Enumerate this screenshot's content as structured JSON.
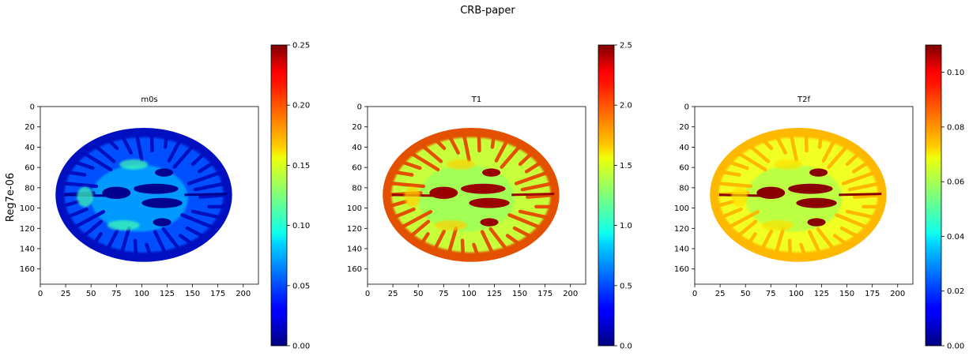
{
  "figure": {
    "suptitle": "CRB-paper",
    "row_label": "Reg7e-06"
  },
  "chart_data": [
    {
      "type": "heatmap",
      "title": "m0s",
      "colormap": "jet",
      "xlim": [
        0,
        215
      ],
      "ylim": [
        175,
        0
      ],
      "x_ticks": [
        0,
        25,
        50,
        75,
        100,
        125,
        150,
        175,
        200
      ],
      "y_ticks": [
        0,
        20,
        40,
        60,
        80,
        100,
        120,
        140,
        160
      ],
      "colorbar": {
        "range": [
          0,
          0.25
        ],
        "ticks": [
          "0.00",
          "0.05",
          "0.10",
          "0.15",
          "0.20",
          "0.25"
        ]
      },
      "brain": {
        "cx": 102,
        "cy": 87,
        "rx": 87,
        "ry": 66
      },
      "colors": {
        "background": "#0050ff",
        "core": "#00a8ff",
        "gm": "#0010c0",
        "csf": "#00008e",
        "highlight": "#40ffb0"
      }
    },
    {
      "type": "heatmap",
      "title": "T1",
      "colormap": "jet",
      "xlim": [
        0,
        215
      ],
      "ylim": [
        175,
        0
      ],
      "x_ticks": [
        0,
        25,
        50,
        75,
        100,
        125,
        150,
        175,
        200
      ],
      "y_ticks": [
        0,
        20,
        40,
        60,
        80,
        100,
        120,
        140,
        160
      ],
      "colorbar": {
        "range": [
          0,
          2.5
        ],
        "ticks": [
          "0.0",
          "0.5",
          "1.0",
          "1.5",
          "2.0",
          "2.5"
        ]
      },
      "brain": {
        "cx": 102,
        "cy": 87,
        "rx": 87,
        "ry": 66
      },
      "colors": {
        "background": "#c8ff3a",
        "core": "#9cff5a",
        "gm": "#e25000",
        "csf": "#9a0000",
        "highlight": "#ffd000"
      }
    },
    {
      "type": "heatmap",
      "title": "T2f",
      "colormap": "jet",
      "xlim": [
        0,
        215
      ],
      "ylim": [
        175,
        0
      ],
      "x_ticks": [
        0,
        25,
        50,
        75,
        100,
        125,
        150,
        175,
        200
      ],
      "y_ticks": [
        0,
        20,
        40,
        60,
        80,
        100,
        120,
        140,
        160
      ],
      "colorbar": {
        "range": [
          0,
          0.11
        ],
        "ticks": [
          "0.00",
          "0.02",
          "0.04",
          "0.06",
          "0.08",
          "0.10"
        ]
      },
      "brain": {
        "cx": 102,
        "cy": 87,
        "rx": 87,
        "ry": 66
      },
      "colors": {
        "background": "#f2ff24",
        "core": "#b4ff48",
        "gm": "#ffb800",
        "csf": "#8a0000",
        "highlight": "#ffe000"
      }
    }
  ]
}
